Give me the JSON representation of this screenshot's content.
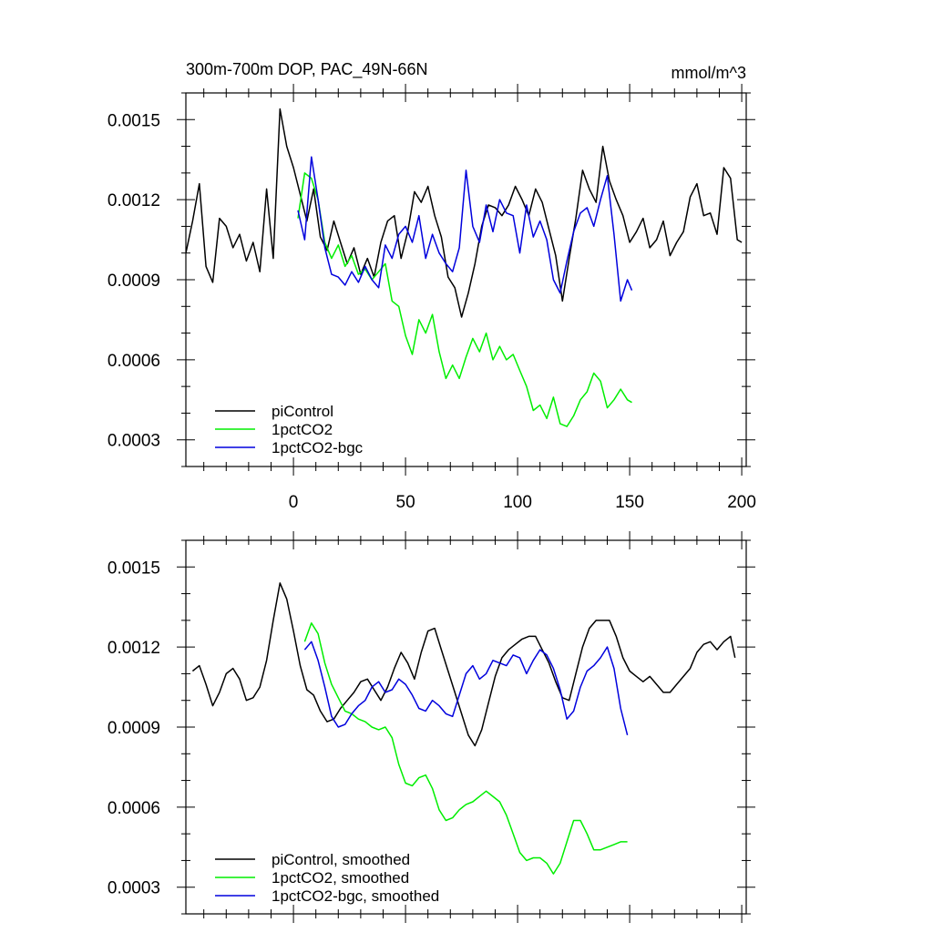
{
  "chart_data": [
    {
      "type": "line",
      "title": "300m-700m DOP, PAC_49N-66N",
      "units": "mmol/m^3",
      "xlabel": "",
      "ylabel": "",
      "xlim": [
        -48,
        202
      ],
      "ylim": [
        0.0002,
        0.0016
      ],
      "x_ticks": [
        0,
        50,
        100,
        150,
        200
      ],
      "x_tick_labels": [
        "0",
        "50",
        "100",
        "150",
        "200"
      ],
      "y_ticks": [
        0.0003,
        0.0006,
        0.0009,
        0.0012,
        0.0015
      ],
      "y_tick_labels": [
        "0.0003",
        "0.0006",
        "0.0009",
        "0.0012",
        "0.0015"
      ],
      "legend_position": "bottom-left",
      "series": [
        {
          "name": "piControl",
          "color": "#000000",
          "x": [
            -48,
            -45,
            -42,
            -39,
            -36,
            -33,
            -30,
            -27,
            -24,
            -21,
            -18,
            -15,
            -12,
            -9,
            -6,
            -3,
            0,
            3,
            6,
            9,
            12,
            15,
            18,
            21,
            24,
            27,
            30,
            33,
            36,
            39,
            42,
            45,
            48,
            51,
            54,
            57,
            60,
            63,
            66,
            69,
            72,
            75,
            78,
            81,
            84,
            87,
            90,
            93,
            96,
            99,
            102,
            105,
            108,
            111,
            114,
            117,
            120,
            123,
            126,
            129,
            132,
            135,
            138,
            141,
            144,
            147,
            150,
            153,
            156,
            159,
            162,
            165,
            168,
            171,
            174,
            177,
            180,
            183,
            186,
            189,
            192,
            195,
            198,
            200
          ],
          "values": [
            0.001,
            0.00112,
            0.00126,
            0.00095,
            0.00089,
            0.00113,
            0.0011,
            0.00102,
            0.00107,
            0.00097,
            0.00104,
            0.00093,
            0.00124,
            0.00098,
            0.00154,
            0.0014,
            0.00132,
            0.00122,
            0.00112,
            0.00124,
            0.00106,
            0.00101,
            0.00112,
            0.00104,
            0.00096,
            0.00102,
            0.00092,
            0.00098,
            0.00091,
            0.00104,
            0.00112,
            0.00114,
            0.00098,
            0.00108,
            0.00123,
            0.00119,
            0.00125,
            0.00114,
            0.00106,
            0.00091,
            0.00087,
            0.00076,
            0.00085,
            0.00096,
            0.0011,
            0.00118,
            0.00117,
            0.00114,
            0.00118,
            0.00125,
            0.0012,
            0.00114,
            0.00124,
            0.00119,
            0.00109,
            0.00099,
            0.00082,
            0.00098,
            0.00113,
            0.00131,
            0.00124,
            0.00119,
            0.0014,
            0.00127,
            0.0012,
            0.00114,
            0.00104,
            0.00108,
            0.00113,
            0.00102,
            0.00105,
            0.00112,
            0.00099,
            0.00104,
            0.00108,
            0.00121,
            0.00126,
            0.00114,
            0.00115,
            0.00107,
            0.00132,
            0.00128,
            0.00105,
            0.00104
          ]
        },
        {
          "name": "1pctCO2",
          "color": "#00ee00",
          "x": [
            2,
            5,
            8,
            11,
            14,
            17,
            20,
            23,
            26,
            29,
            32,
            35,
            38,
            41,
            44,
            47,
            50,
            53,
            56,
            59,
            62,
            65,
            68,
            71,
            74,
            77,
            80,
            83,
            86,
            89,
            92,
            95,
            98,
            101,
            104,
            107,
            110,
            113,
            116,
            119,
            122,
            125,
            128,
            131,
            134,
            137,
            140,
            143,
            146,
            149,
            151
          ],
          "values": [
            0.00113,
            0.0013,
            0.00128,
            0.0012,
            0.00104,
            0.00098,
            0.00103,
            0.00095,
            0.00099,
            0.00092,
            0.00094,
            0.0009,
            0.00093,
            0.00096,
            0.00082,
            0.0008,
            0.00069,
            0.00062,
            0.00075,
            0.0007,
            0.00077,
            0.00063,
            0.00053,
            0.00058,
            0.00053,
            0.00061,
            0.00068,
            0.00063,
            0.0007,
            0.0006,
            0.00065,
            0.0006,
            0.00062,
            0.00056,
            0.0005,
            0.00041,
            0.00043,
            0.00038,
            0.00046,
            0.00036,
            0.00035,
            0.00039,
            0.00045,
            0.00048,
            0.00055,
            0.00052,
            0.00042,
            0.00045,
            0.00049,
            0.00045,
            0.00044
          ]
        },
        {
          "name": "1pctCO2-bgc",
          "color": "#0000dd",
          "x": [
            2,
            5,
            8,
            11,
            14,
            17,
            20,
            23,
            26,
            29,
            32,
            35,
            38,
            41,
            44,
            47,
            50,
            53,
            56,
            59,
            62,
            65,
            68,
            71,
            74,
            77,
            80,
            83,
            86,
            89,
            92,
            95,
            98,
            101,
            104,
            107,
            110,
            113,
            116,
            119,
            122,
            125,
            128,
            131,
            134,
            137,
            140,
            143,
            146,
            149,
            151
          ],
          "values": [
            0.00116,
            0.00105,
            0.00136,
            0.0012,
            0.00102,
            0.00092,
            0.00091,
            0.00088,
            0.00093,
            0.00089,
            0.00095,
            0.0009,
            0.00087,
            0.00103,
            0.00098,
            0.00107,
            0.0011,
            0.00104,
            0.00114,
            0.00098,
            0.00107,
            0.001,
            0.00096,
            0.00093,
            0.00102,
            0.00131,
            0.0011,
            0.00104,
            0.00118,
            0.00108,
            0.0012,
            0.00115,
            0.00114,
            0.001,
            0.00118,
            0.00106,
            0.00112,
            0.00105,
            0.0009,
            0.00085,
            0.00097,
            0.00108,
            0.00115,
            0.00117,
            0.0011,
            0.0012,
            0.00129,
            0.00107,
            0.00082,
            0.0009,
            0.00086
          ]
        }
      ]
    },
    {
      "type": "line",
      "title": "",
      "xlabel": "",
      "ylabel": "",
      "xlim": [
        -48,
        202
      ],
      "ylim": [
        0.0002,
        0.0016
      ],
      "x_ticks": [
        0,
        50,
        100,
        150,
        200
      ],
      "y_ticks": [
        0.0003,
        0.0006,
        0.0009,
        0.0012,
        0.0015
      ],
      "y_tick_labels": [
        "0.0003",
        "0.0006",
        "0.0009",
        "0.0012",
        "0.0015"
      ],
      "legend_position": "bottom-left",
      "series": [
        {
          "name": "piControl, smoothed",
          "color": "#000000",
          "x": [
            -45,
            -42,
            -39,
            -36,
            -33,
            -30,
            -27,
            -24,
            -21,
            -18,
            -15,
            -12,
            -9,
            -6,
            -3,
            0,
            3,
            6,
            9,
            12,
            15,
            18,
            21,
            24,
            27,
            30,
            33,
            36,
            39,
            42,
            45,
            48,
            51,
            54,
            57,
            60,
            63,
            66,
            69,
            72,
            75,
            78,
            81,
            84,
            87,
            90,
            93,
            96,
            99,
            102,
            105,
            108,
            111,
            114,
            117,
            120,
            123,
            126,
            129,
            132,
            135,
            138,
            141,
            144,
            147,
            150,
            153,
            156,
            159,
            162,
            165,
            168,
            171,
            174,
            177,
            180,
            183,
            186,
            189,
            192,
            195,
            197
          ],
          "values": [
            0.00111,
            0.00113,
            0.00106,
            0.00098,
            0.00103,
            0.0011,
            0.00112,
            0.00108,
            0.001,
            0.00101,
            0.00105,
            0.00115,
            0.0013,
            0.00144,
            0.00138,
            0.00126,
            0.00113,
            0.00104,
            0.00102,
            0.00096,
            0.00092,
            0.00093,
            0.00097,
            0.001,
            0.00103,
            0.00107,
            0.00108,
            0.00104,
            0.001,
            0.00105,
            0.00112,
            0.00118,
            0.00114,
            0.00108,
            0.00118,
            0.00126,
            0.00127,
            0.00119,
            0.00111,
            0.00103,
            0.00095,
            0.00087,
            0.00083,
            0.00089,
            0.00099,
            0.00109,
            0.00116,
            0.00119,
            0.00121,
            0.00123,
            0.00124,
            0.00124,
            0.00119,
            0.00114,
            0.00107,
            0.00101,
            0.001,
            0.0011,
            0.0012,
            0.00127,
            0.0013,
            0.0013,
            0.0013,
            0.00124,
            0.00116,
            0.00111,
            0.00109,
            0.00107,
            0.00109,
            0.00106,
            0.00103,
            0.00103,
            0.00106,
            0.00109,
            0.00112,
            0.00118,
            0.00121,
            0.00122,
            0.00119,
            0.00122,
            0.00124,
            0.00116
          ]
        },
        {
          "name": "1pctCO2, smoothed",
          "color": "#00ee00",
          "x": [
            5,
            8,
            11,
            14,
            17,
            20,
            23,
            26,
            29,
            32,
            35,
            38,
            41,
            44,
            47,
            50,
            53,
            56,
            59,
            62,
            65,
            68,
            71,
            74,
            77,
            80,
            83,
            86,
            89,
            92,
            95,
            98,
            101,
            104,
            107,
            110,
            113,
            116,
            119,
            122,
            125,
            128,
            131,
            134,
            137,
            140,
            143,
            146,
            149
          ],
          "values": [
            0.00122,
            0.00129,
            0.00125,
            0.00114,
            0.00106,
            0.00101,
            0.00096,
            0.00095,
            0.00093,
            0.00092,
            0.0009,
            0.00089,
            0.0009,
            0.00086,
            0.00076,
            0.00069,
            0.00068,
            0.00071,
            0.00072,
            0.00067,
            0.00059,
            0.00055,
            0.00056,
            0.00059,
            0.00061,
            0.00062,
            0.00064,
            0.00066,
            0.00064,
            0.00062,
            0.00057,
            0.0005,
            0.00043,
            0.0004,
            0.00041,
            0.00041,
            0.00039,
            0.00035,
            0.00039,
            0.00047,
            0.00055,
            0.00055,
            0.0005,
            0.00044,
            0.00044,
            0.00045,
            0.00046,
            0.00047,
            0.00047
          ]
        },
        {
          "name": "1pctCO2-bgc, smoothed",
          "color": "#0000dd",
          "x": [
            5,
            8,
            11,
            14,
            17,
            20,
            23,
            26,
            29,
            32,
            35,
            38,
            41,
            44,
            47,
            50,
            53,
            56,
            59,
            62,
            65,
            68,
            71,
            74,
            77,
            80,
            83,
            86,
            89,
            92,
            95,
            98,
            101,
            104,
            107,
            110,
            113,
            116,
            119,
            122,
            125,
            128,
            131,
            134,
            137,
            140,
            143,
            146,
            149
          ],
          "values": [
            0.00119,
            0.00122,
            0.00115,
            0.00105,
            0.00094,
            0.0009,
            0.00091,
            0.00095,
            0.00098,
            0.001,
            0.00105,
            0.00107,
            0.00103,
            0.00104,
            0.00108,
            0.00106,
            0.00102,
            0.00097,
            0.00096,
            0.001,
            0.00098,
            0.00095,
            0.00094,
            0.00102,
            0.0011,
            0.00113,
            0.00108,
            0.0011,
            0.00115,
            0.00114,
            0.00113,
            0.00117,
            0.00116,
            0.0011,
            0.00115,
            0.00119,
            0.00117,
            0.00112,
            0.00104,
            0.00093,
            0.00096,
            0.00105,
            0.00111,
            0.00113,
            0.00116,
            0.0012,
            0.00112,
            0.00097,
            0.00087
          ]
        }
      ]
    }
  ]
}
